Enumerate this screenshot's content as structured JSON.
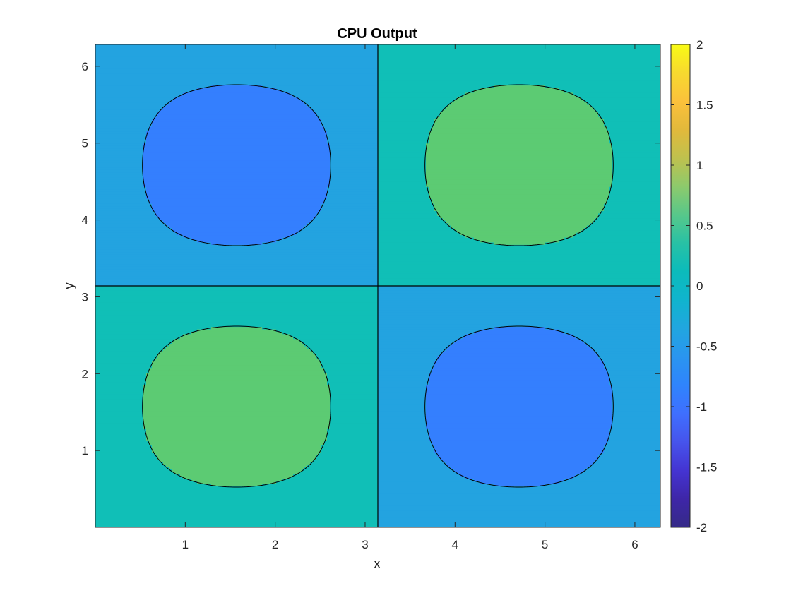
{
  "chart_data": {
    "type": "contourf",
    "title": "CPU Output",
    "xlabel": "x",
    "ylabel": "y",
    "function": "sin(x)*sin(y)",
    "xlim": [
      0,
      6.2832
    ],
    "ylim": [
      0,
      6.2832
    ],
    "xticks": [
      1,
      2,
      3,
      4,
      5,
      6
    ],
    "yticks": [
      1,
      2,
      3,
      4,
      5,
      6
    ],
    "xtick_labels": [
      "1",
      "2",
      "3",
      "4",
      "5",
      "6"
    ],
    "ytick_labels": [
      "1",
      "2",
      "3",
      "4",
      "5",
      "6"
    ],
    "contour_levels": [
      -1.5,
      -1,
      -0.5,
      0,
      0.5,
      1,
      1.5
    ],
    "contour_line_color": "#000000",
    "band_fills": [
      {
        "range": [
          -2.0,
          -1.5
        ],
        "color": "#3d26a8"
      },
      {
        "range": [
          -1.5,
          -1.0
        ],
        "color": "#464df0"
      },
      {
        "range": [
          -1.0,
          -0.5
        ],
        "color": "#347ffe"
      },
      {
        "range": [
          -0.5,
          0.0
        ],
        "color": "#23a3e0"
      },
      {
        "range": [
          0.0,
          0.5
        ],
        "color": "#10bfb7"
      },
      {
        "range": [
          0.5,
          1.0
        ],
        "color": "#5ccb73"
      },
      {
        "range": [
          1.0,
          1.5
        ],
        "color": "#cdbc24"
      },
      {
        "range": [
          1.5,
          2.0
        ],
        "color": "#fcca38"
      }
    ],
    "colorbar": {
      "limits": [
        -2,
        2
      ],
      "ticks": [
        -2,
        -1.5,
        -1,
        -0.5,
        0,
        0.5,
        1,
        1.5,
        2
      ],
      "tick_labels": [
        "-2",
        "-1.5",
        "-1",
        "-0.5",
        "0",
        "0.5",
        "1",
        "1.5",
        "2"
      ],
      "colormap": "parula"
    },
    "grid": false
  }
}
